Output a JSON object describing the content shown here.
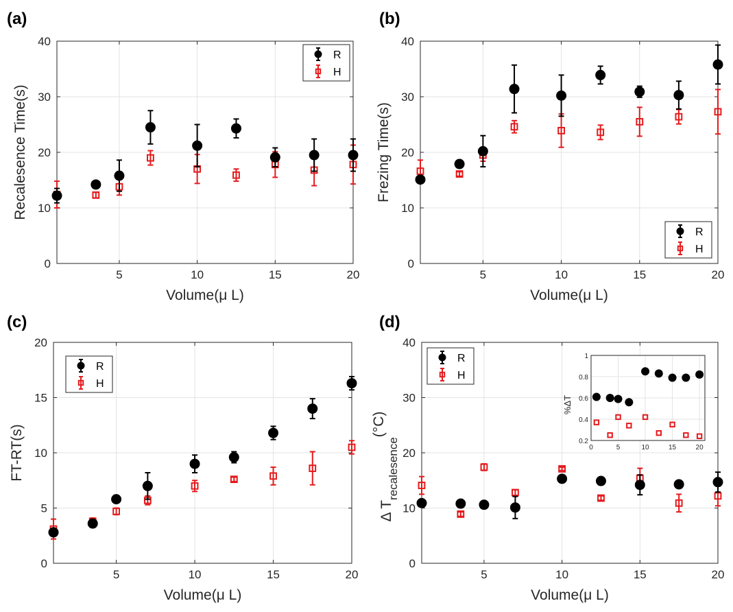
{
  "chart_data": [
    {
      "id": "a",
      "panel_label": "(a)",
      "type": "scatter",
      "xlabel": "Volume(μ L)",
      "ylabel": "Recalesence Time(s)",
      "xlim": [
        1,
        20
      ],
      "ylim": [
        0,
        40
      ],
      "xticks": [
        5,
        10,
        15,
        20
      ],
      "yticks": [
        0,
        10,
        20,
        30,
        40
      ],
      "legend_position": "top-right",
      "grid": true,
      "series": [
        {
          "name": "R",
          "color": "#000000",
          "marker": "filled-circle",
          "x": [
            1,
            3.5,
            5,
            7,
            10,
            12.5,
            15,
            17.5,
            20
          ],
          "y": [
            12.2,
            14.2,
            15.8,
            24.5,
            21.2,
            24.3,
            19.1,
            19.5,
            19.5
          ],
          "err": [
            1.3,
            0.5,
            2.8,
            3.0,
            3.8,
            1.7,
            1.7,
            2.9,
            2.9
          ]
        },
        {
          "name": "H",
          "color": "#e41a1c",
          "marker": "open-square",
          "x": [
            1,
            3.5,
            5,
            7,
            10,
            12.5,
            15,
            17.5,
            20
          ],
          "y": [
            12.4,
            12.3,
            13.8,
            19.0,
            17.0,
            15.9,
            17.8,
            16.8,
            17.8
          ],
          "err": [
            2.4,
            0.5,
            1.5,
            1.3,
            2.6,
            1.1,
            2.3,
            2.8,
            3.5
          ]
        }
      ]
    },
    {
      "id": "b",
      "panel_label": "(b)",
      "type": "scatter",
      "xlabel": "Volume(μ L)",
      "ylabel": "Frezing Time(s)",
      "xlim": [
        1,
        20
      ],
      "ylim": [
        0,
        40
      ],
      "xticks": [
        5,
        10,
        15,
        20
      ],
      "yticks": [
        0,
        10,
        20,
        30,
        40
      ],
      "legend_position": "bottom-right",
      "grid": true,
      "series": [
        {
          "name": "R",
          "color": "#000000",
          "marker": "filled-circle",
          "x": [
            1,
            3.5,
            5,
            7,
            10,
            12.5,
            15,
            17.5,
            20
          ],
          "y": [
            15.1,
            17.9,
            20.2,
            31.4,
            30.2,
            33.9,
            30.9,
            30.3,
            35.8
          ],
          "err": [
            0.4,
            0.5,
            2.8,
            4.3,
            3.7,
            1.6,
            1.0,
            2.5,
            3.5
          ]
        },
        {
          "name": "H",
          "color": "#e41a1c",
          "marker": "open-square",
          "x": [
            1,
            3.5,
            5,
            7,
            10,
            12.5,
            15,
            17.5,
            20
          ],
          "y": [
            16.6,
            16.1,
            19.5,
            24.6,
            23.9,
            23.6,
            25.5,
            26.4,
            27.3
          ],
          "err": [
            2.0,
            0.4,
            1.1,
            1.1,
            3.0,
            1.3,
            2.6,
            1.3,
            4.0
          ]
        }
      ]
    },
    {
      "id": "c",
      "panel_label": "(c)",
      "type": "scatter",
      "xlabel": "Volume(μ L)",
      "ylabel": "FT-RT(s)",
      "xlim": [
        1,
        20
      ],
      "ylim": [
        0,
        20
      ],
      "xticks": [
        5,
        10,
        15,
        20
      ],
      "yticks": [
        0,
        5,
        10,
        15,
        20
      ],
      "legend_position": "top-left",
      "grid": true,
      "series": [
        {
          "name": "R",
          "color": "#000000",
          "marker": "filled-circle",
          "x": [
            1,
            3.5,
            5,
            7,
            10,
            12.5,
            15,
            17.5,
            20
          ],
          "y": [
            2.8,
            3.6,
            5.8,
            7.0,
            9.0,
            9.6,
            11.8,
            14.0,
            16.3
          ],
          "err": [
            0.3,
            0.2,
            0.2,
            1.2,
            0.8,
            0.5,
            0.6,
            0.9,
            0.6
          ]
        },
        {
          "name": "H",
          "color": "#e41a1c",
          "marker": "open-square",
          "x": [
            1,
            3.5,
            5,
            7,
            10,
            12.5,
            15,
            17.5,
            20
          ],
          "y": [
            3.1,
            3.8,
            4.7,
            5.7,
            7.0,
            7.6,
            7.9,
            8.6,
            10.5
          ],
          "err": [
            0.9,
            0.3,
            0.3,
            0.4,
            0.5,
            0.2,
            0.8,
            1.5,
            0.6
          ]
        }
      ]
    },
    {
      "id": "d",
      "panel_label": "(d)",
      "type": "scatter",
      "xlabel": "Volume(μ L)",
      "ylabel_main": "Δ T",
      "ylabel_sub": "recalesence",
      "ylabel_unit": "(°C)",
      "xlim": [
        1,
        20
      ],
      "ylim": [
        0,
        40
      ],
      "xticks": [
        5,
        10,
        15,
        20
      ],
      "yticks": [
        0,
        10,
        20,
        30,
        40
      ],
      "legend_position": "top-left",
      "grid": true,
      "series": [
        {
          "name": "R",
          "color": "#000000",
          "marker": "filled-circle",
          "x": [
            1,
            3.5,
            5,
            7,
            10,
            12.5,
            15,
            17.5,
            20
          ],
          "y": [
            10.9,
            10.8,
            10.6,
            10.1,
            15.3,
            14.9,
            14.2,
            14.3,
            14.7
          ],
          "err": [
            0.4,
            0.4,
            0.3,
            2.0,
            0.4,
            0.5,
            1.8,
            0.5,
            1.8
          ]
        },
        {
          "name": "H",
          "color": "#e41a1c",
          "marker": "open-square",
          "x": [
            1,
            3.5,
            5,
            7,
            10,
            12.5,
            15,
            17.5,
            20
          ],
          "y": [
            14.1,
            8.9,
            17.4,
            12.8,
            17.1,
            11.8,
            15.4,
            10.9,
            12.2
          ],
          "err": [
            1.6,
            0.4,
            0.6,
            0.5,
            0.3,
            0.4,
            1.8,
            1.6,
            1.8
          ]
        }
      ],
      "inset": {
        "ylabel": "%ΔT",
        "xlim": [
          0,
          21
        ],
        "ylim": [
          0.2,
          1.0
        ],
        "xticks": [
          0,
          5,
          10,
          15,
          20
        ],
        "yticks": [
          0.2,
          0.4,
          0.6,
          0.8,
          1
        ],
        "ytick_labels": [
          "0.2",
          "0.4",
          "0.6",
          "0.8",
          "1"
        ],
        "grid": true,
        "series": [
          {
            "name": "R",
            "color": "#000000",
            "marker": "filled-circle",
            "x": [
              1,
              3.5,
              5,
              7,
              10,
              12.5,
              15,
              17.5,
              20
            ],
            "y": [
              0.61,
              0.6,
              0.59,
              0.56,
              0.85,
              0.83,
              0.79,
              0.79,
              0.82
            ]
          },
          {
            "name": "H",
            "color": "#e41a1c",
            "marker": "open-square",
            "x": [
              1,
              3.5,
              5,
              7,
              10,
              12.5,
              15,
              17.5,
              20
            ],
            "y": [
              0.37,
              0.25,
              0.42,
              0.34,
              0.42,
              0.27,
              0.35,
              0.25,
              0.24
            ]
          }
        ]
      }
    }
  ]
}
